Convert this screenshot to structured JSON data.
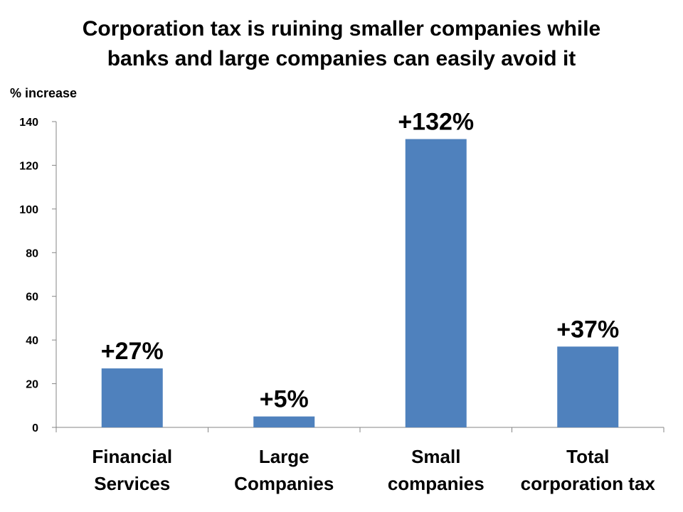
{
  "chart_data": {
    "type": "bar",
    "title": "Corporation tax is ruining smaller companies while\nbanks and large companies can easily avoid it",
    "ylabel": "% increase",
    "xlabel": "",
    "categories": [
      "Financial\nServices",
      "Large\nCompanies",
      "Small\ncompanies",
      "Total\ncorporation tax"
    ],
    "values": [
      27,
      5,
      132,
      37
    ],
    "data_labels": [
      "+27%",
      "+5%",
      "+132%",
      "+37%"
    ],
    "ylim": [
      0,
      140
    ],
    "yticks": [
      0,
      20,
      40,
      60,
      80,
      100,
      120,
      140
    ],
    "grid": false,
    "legend": "none",
    "bar_color": "#4F81BD"
  }
}
